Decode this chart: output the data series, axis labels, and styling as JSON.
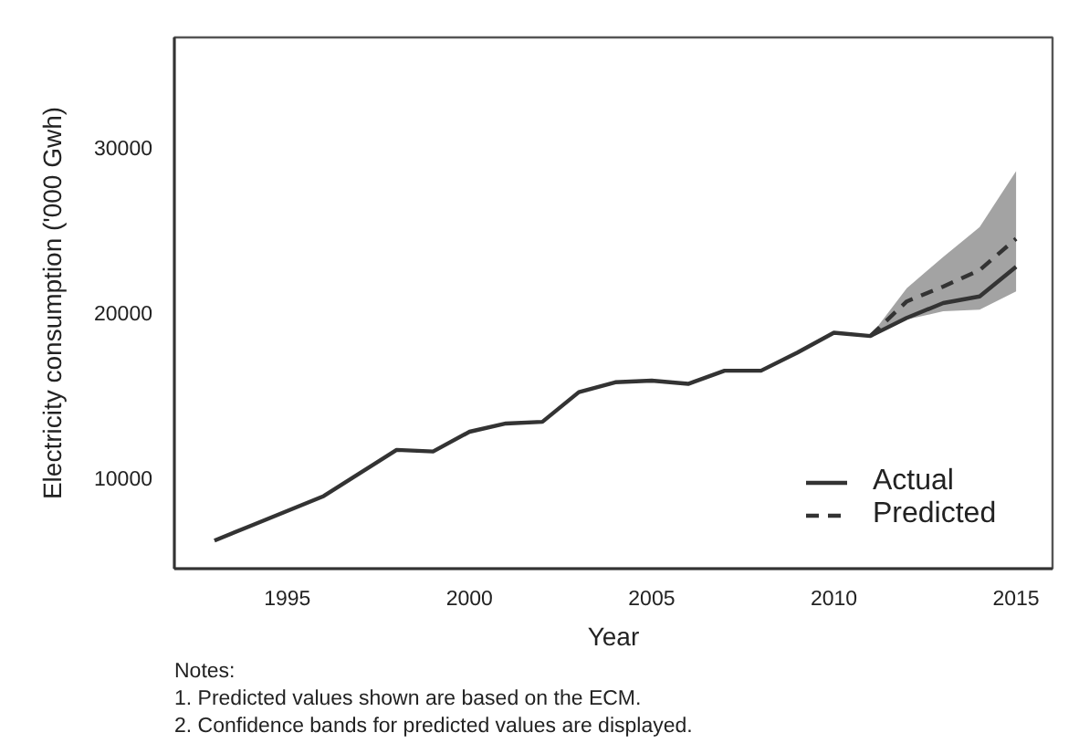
{
  "chart_data": {
    "type": "line",
    "xlabel": "Year",
    "ylabel": "Electricity consumption ('000 Gwh)",
    "x": [
      1993,
      1994,
      1995,
      1996,
      1997,
      1998,
      1999,
      2000,
      2001,
      2002,
      2003,
      2004,
      2005,
      2006,
      2007,
      2008,
      2009,
      2010,
      2011,
      2012,
      2013,
      2014,
      2015
    ],
    "xlim": [
      1991.9,
      2016
    ],
    "xticks": [
      1995,
      2000,
      2005,
      2010,
      2015
    ],
    "ylim": [
      4500,
      36700
    ],
    "yticks": [
      10000,
      20000,
      30000
    ],
    "grid": false,
    "legend": "bottom right",
    "series": [
      {
        "name": "Actual",
        "color": "#333333",
        "line_style": "solid",
        "values": [
          6200,
          7100,
          8000,
          8900,
          10300,
          11700,
          11600,
          12800,
          13300,
          13400,
          15200,
          15800,
          15900,
          15700,
          16500,
          16500,
          17600,
          18800,
          18600,
          19700,
          20600,
          21000,
          22800
        ]
      },
      {
        "name": "Predicted",
        "color": "#333333",
        "line_style": "dashed",
        "x": [
          2011,
          2012,
          2013,
          2014,
          2015
        ],
        "values": [
          18600,
          20700,
          21600,
          22600,
          24500
        ],
        "lower": [
          18600,
          19600,
          20100,
          20200,
          21300
        ],
        "upper": [
          18600,
          21500,
          23400,
          25200,
          28600
        ]
      }
    ],
    "annotations": [
      "Notes:",
      "1. Predicted values shown are based on the ECM.",
      "2. Confidence bands for predicted values are displayed."
    ]
  }
}
